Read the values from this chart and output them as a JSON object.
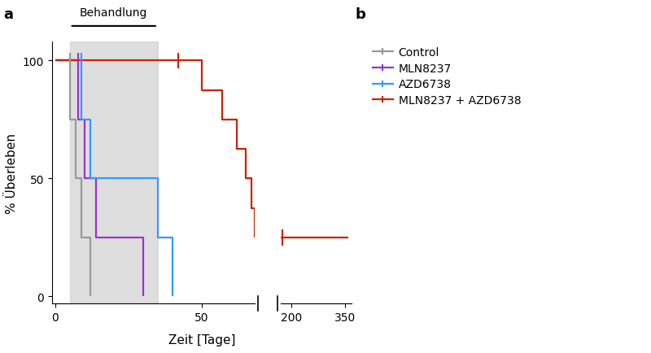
{
  "title_a": "a",
  "xlabel": "Zeit [Tage]",
  "ylabel": "% Überleben",
  "behandlung_label": "Behandlung",
  "background_color": "#ffffff",
  "shading_color": "#d0d0d0",
  "shading_alpha": 0.7,
  "shading_x_start": 5,
  "shading_x_end": 35,
  "yticks": [
    0,
    50,
    100
  ],
  "xticks_left": [
    0,
    50
  ],
  "xticks_right": [
    200,
    350
  ],
  "x1_min": -1,
  "x1_max": 68,
  "x2_min": 170,
  "x2_max": 368,
  "curves": {
    "control": {
      "color": "#999999",
      "label": "Control",
      "steps": [
        [
          0,
          100
        ],
        [
          5,
          100
        ],
        [
          5,
          75
        ],
        [
          7,
          75
        ],
        [
          7,
          50
        ],
        [
          9,
          50
        ],
        [
          9,
          25
        ],
        [
          12,
          25
        ],
        [
          12,
          0
        ]
      ],
      "censors": []
    },
    "mln": {
      "color": "#9933CC",
      "label": "MLN8237",
      "steps": [
        [
          0,
          100
        ],
        [
          8,
          100
        ],
        [
          8,
          75
        ],
        [
          10,
          75
        ],
        [
          10,
          50
        ],
        [
          14,
          50
        ],
        [
          14,
          25
        ],
        [
          30,
          25
        ],
        [
          30,
          0
        ]
      ],
      "censors": []
    },
    "azd": {
      "color": "#3399FF",
      "label": "AZD6738",
      "steps": [
        [
          0,
          100
        ],
        [
          9,
          100
        ],
        [
          9,
          75
        ],
        [
          12,
          75
        ],
        [
          12,
          50
        ],
        [
          35,
          50
        ],
        [
          35,
          25
        ],
        [
          40,
          25
        ],
        [
          40,
          0
        ]
      ],
      "censors": []
    },
    "combo": {
      "color": "#CC2200",
      "label": "MLN8237 + AZD6738",
      "steps": [
        [
          0,
          100
        ],
        [
          35,
          100
        ],
        [
          42,
          100
        ],
        [
          50,
          87.5
        ],
        [
          57,
          75
        ],
        [
          62,
          62.5
        ],
        [
          65,
          50
        ],
        [
          67,
          37.5
        ],
        [
          68,
          25
        ],
        [
          175,
          25
        ],
        [
          360,
          25
        ]
      ],
      "censors": [
        [
          175,
          25
        ]
      ]
    }
  }
}
